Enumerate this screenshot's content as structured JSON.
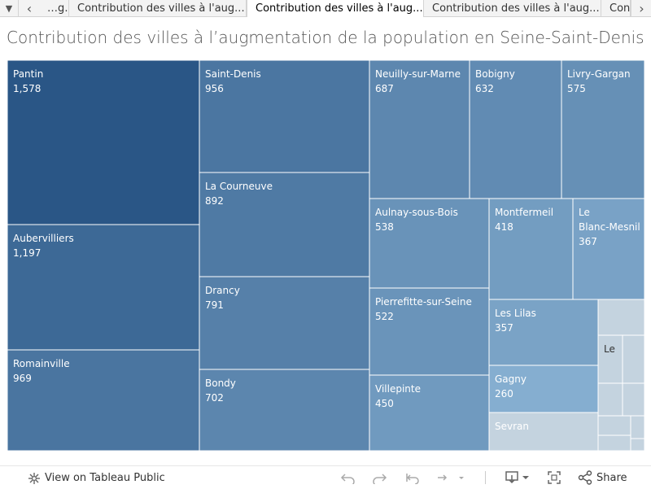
{
  "tabs": {
    "items": [
      {
        "label": "…g…"
      },
      {
        "label": "Contribution des villes à l'aug..."
      },
      {
        "label": "Contribution des villes à l'aug..."
      },
      {
        "label": "Contribution des villes à l'aug..."
      },
      {
        "label": "Con"
      }
    ],
    "active_index": 2,
    "menu_glyph": "▼",
    "prev_glyph": "‹",
    "next_glyph": "›"
  },
  "chart_data": {
    "type": "treemap",
    "title": "Contribution des villes à l’augmentation de la population en Seine-Saint-Denis",
    "colors": {
      "dark": "#2a5686",
      "light": "#a8d0ec",
      "small": "#c4d3df",
      "border": "#ffffff"
    },
    "cells": [
      {
        "label": "Pantin",
        "value": 1578,
        "display": "1,578"
      },
      {
        "label": "Aubervilliers",
        "value": 1197,
        "display": "1,197"
      },
      {
        "label": "Romainville",
        "value": 969,
        "display": "969"
      },
      {
        "label": "Saint-Denis",
        "value": 956,
        "display": "956"
      },
      {
        "label": "La Courneuve",
        "value": 892,
        "display": "892"
      },
      {
        "label": "Drancy",
        "value": 791,
        "display": "791"
      },
      {
        "label": "Bondy",
        "value": 702,
        "display": "702"
      },
      {
        "label": "Neuilly-sur-Marne",
        "value": 687,
        "display": "687"
      },
      {
        "label": "Bobigny",
        "value": 632,
        "display": "632"
      },
      {
        "label": "Livry-Gargan",
        "value": 575,
        "display": "575"
      },
      {
        "label": "Aulnay-sous-Bois",
        "value": 538,
        "display": "538"
      },
      {
        "label": "Montfermeil",
        "value": 418,
        "display": "418"
      },
      {
        "label": "Le Blanc-Mesnil",
        "value": 367,
        "display": "367"
      },
      {
        "label": "Pierrefitte-sur-Seine",
        "value": 522,
        "display": "522"
      },
      {
        "label": "Les Lilas",
        "value": 357,
        "display": "357"
      },
      {
        "label": "Villepinte",
        "value": 450,
        "display": "450"
      },
      {
        "label": "Gagny",
        "value": 260,
        "display": "260"
      },
      {
        "label": "Sevran",
        "value": null,
        "display": ""
      },
      {
        "label": "Le",
        "value": null,
        "display": ""
      }
    ]
  },
  "footer": {
    "view_label": "View on Tableau Public",
    "share_label": "Share"
  }
}
